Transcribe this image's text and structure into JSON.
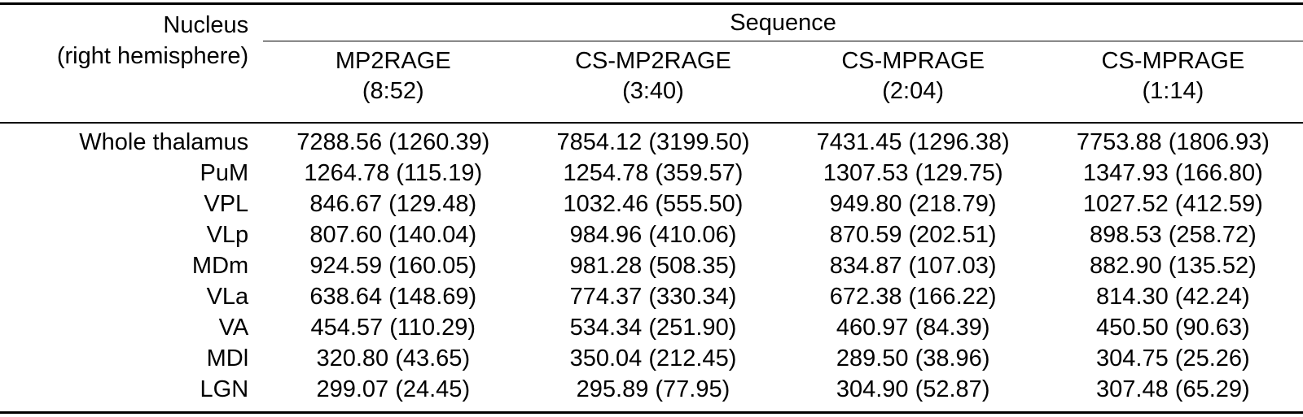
{
  "table": {
    "header": {
      "nucleus_line1": "Nucleus",
      "nucleus_line2": "(right hemisphere)",
      "sequence_label": "Sequence",
      "columns": [
        {
          "name": "MP2RAGE",
          "time": "(8:52)"
        },
        {
          "name": "CS-MP2RAGE",
          "time": "(3:40)"
        },
        {
          "name": "CS-MPRAGE",
          "time": "(2:04)"
        },
        {
          "name": "CS-MPRAGE",
          "time": "(1:14)"
        }
      ]
    },
    "rows": [
      {
        "label": "Whole thalamus",
        "values": [
          "7288.56 (1260.39)",
          "7854.12 (3199.50)",
          "7431.45 (1296.38)",
          "7753.88 (1806.93)"
        ]
      },
      {
        "label": "PuM",
        "values": [
          "1264.78 (115.19)",
          "1254.78 (359.57)",
          "1307.53 (129.75)",
          "1347.93 (166.80)"
        ]
      },
      {
        "label": "VPL",
        "values": [
          "846.67 (129.48)",
          "1032.46 (555.50)",
          "949.80 (218.79)",
          "1027.52 (412.59)"
        ]
      },
      {
        "label": "VLp",
        "values": [
          "807.60 (140.04)",
          "984.96 (410.06)",
          "870.59 (202.51)",
          "898.53 (258.72)"
        ]
      },
      {
        "label": "MDm",
        "values": [
          "924.59 (160.05)",
          "981.28 (508.35)",
          "834.87 (107.03)",
          "882.90 (135.52)"
        ]
      },
      {
        "label": "VLa",
        "values": [
          "638.64 (148.69)",
          "774.37 (330.34)",
          "672.38 (166.22)",
          "814.30 (42.24)"
        ]
      },
      {
        "label": "VA",
        "values": [
          "454.57 (110.29)",
          "534.34 (251.90)",
          "460.97 (84.39)",
          "450.50 (90.63)"
        ]
      },
      {
        "label": "MDl",
        "values": [
          "320.80 (43.65)",
          "350.04 (212.45)",
          "289.50 (38.96)",
          "304.75 (25.26)"
        ]
      },
      {
        "label": "LGN",
        "values": [
          "299.07 (24.45)",
          "295.89 (77.95)",
          "304.90 (52.87)",
          "307.48 (65.29)"
        ]
      }
    ],
    "colors": {
      "text": "#000000",
      "background": "#ffffff",
      "rule": "#000000"
    }
  },
  "chart_data": {
    "type": "table",
    "title": "Nucleus (right hemisphere) by Sequence",
    "columns": [
      "Nucleus (right hemisphere)",
      "MP2RAGE (8:52)",
      "CS-MP2RAGE (3:40)",
      "CS-MPRAGE (2:04)",
      "CS-MPRAGE (1:14)"
    ],
    "rows": [
      [
        "Whole thalamus",
        "7288.56 (1260.39)",
        "7854.12 (3199.50)",
        "7431.45 (1296.38)",
        "7753.88 (1806.93)"
      ],
      [
        "PuM",
        "1264.78 (115.19)",
        "1254.78 (359.57)",
        "1307.53 (129.75)",
        "1347.93 (166.80)"
      ],
      [
        "VPL",
        "846.67 (129.48)",
        "1032.46 (555.50)",
        "949.80 (218.79)",
        "1027.52 (412.59)"
      ],
      [
        "VLp",
        "807.60 (140.04)",
        "984.96 (410.06)",
        "870.59 (202.51)",
        "898.53 (258.72)"
      ],
      [
        "MDm",
        "924.59 (160.05)",
        "981.28 (508.35)",
        "834.87 (107.03)",
        "882.90 (135.52)"
      ],
      [
        "VLa",
        "638.64 (148.69)",
        "774.37 (330.34)",
        "672.38 (166.22)",
        "814.30 (42.24)"
      ],
      [
        "VA",
        "454.57 (110.29)",
        "534.34 (251.90)",
        "460.97 (84.39)",
        "450.50 (90.63)"
      ],
      [
        "MDl",
        "320.80 (43.65)",
        "350.04 (212.45)",
        "289.50 (38.96)",
        "304.75 (25.26)"
      ],
      [
        "LGN",
        "299.07 (24.45)",
        "295.89 (77.95)",
        "304.90 (52.87)",
        "307.48 (65.29)"
      ]
    ]
  }
}
